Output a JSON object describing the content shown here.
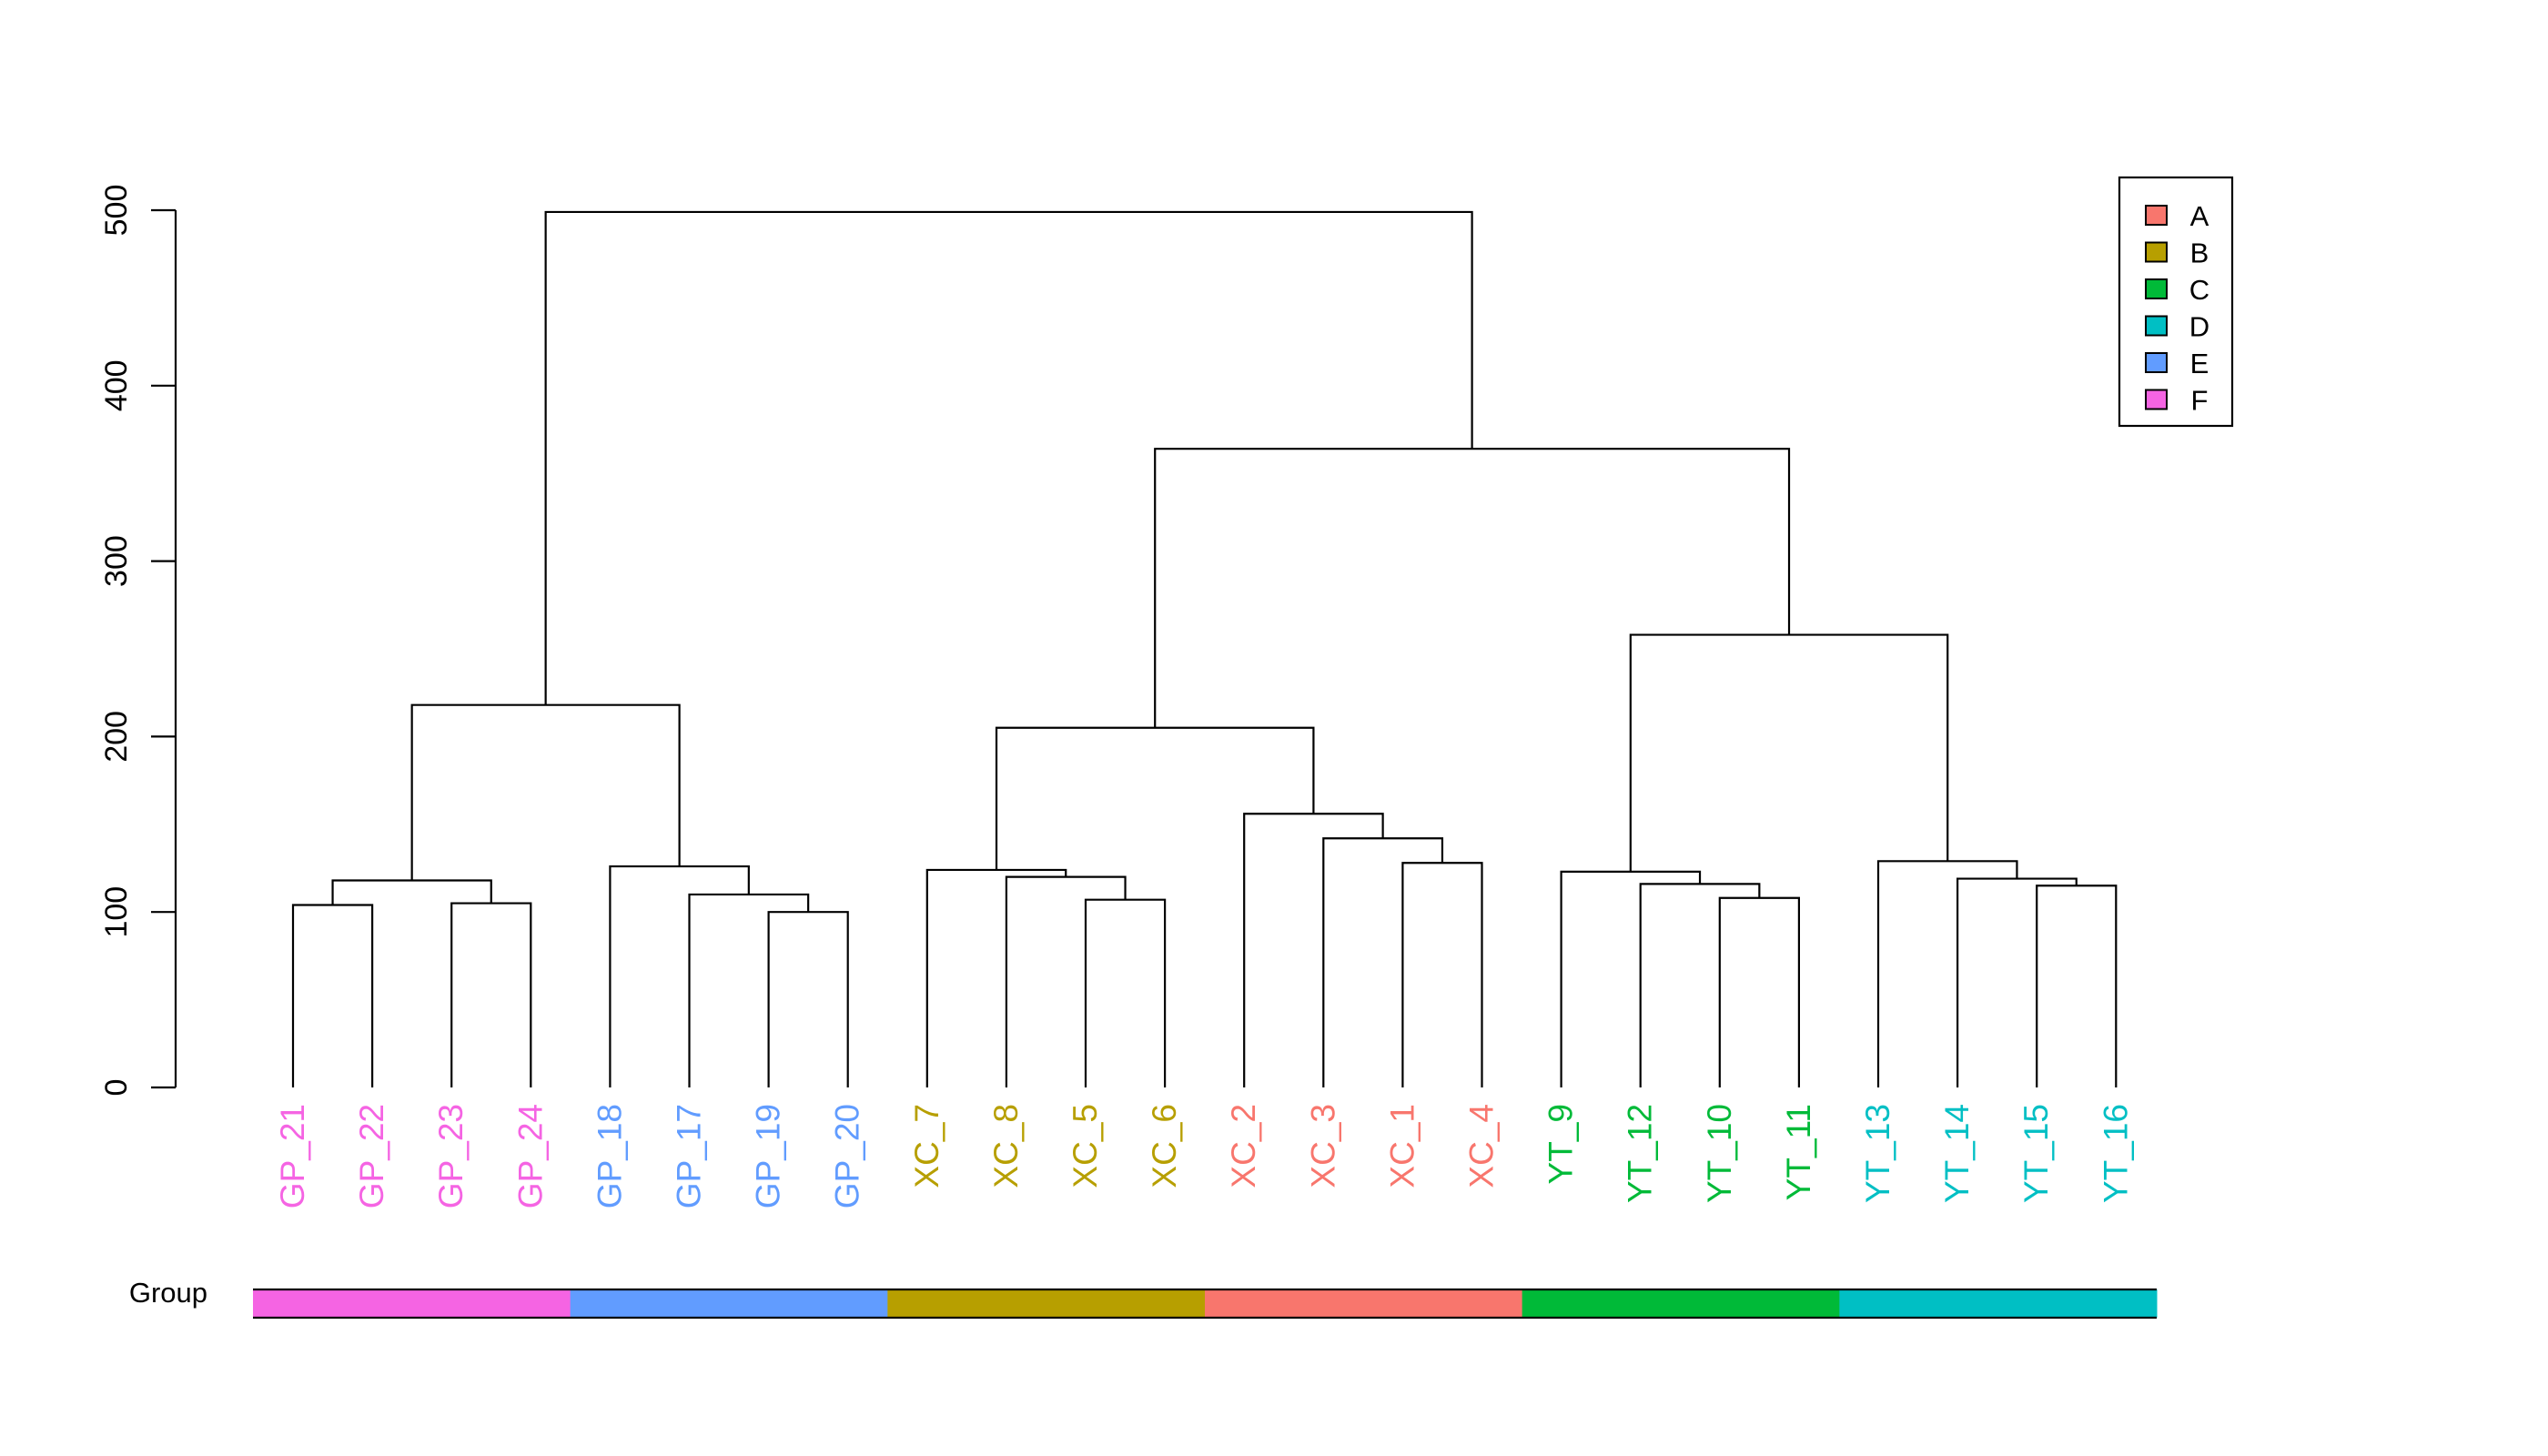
{
  "chart_data": {
    "type": "dendrogram",
    "ylim": [
      0,
      500
    ],
    "yticks": [
      0,
      100,
      200,
      300,
      400,
      500
    ],
    "leaves": [
      {
        "label": "GP_21",
        "group": "F"
      },
      {
        "label": "GP_22",
        "group": "F"
      },
      {
        "label": "GP_23",
        "group": "F"
      },
      {
        "label": "GP_24",
        "group": "F"
      },
      {
        "label": "GP_18",
        "group": "E"
      },
      {
        "label": "GP_17",
        "group": "E"
      },
      {
        "label": "GP_19",
        "group": "E"
      },
      {
        "label": "GP_20",
        "group": "E"
      },
      {
        "label": "XC_7",
        "group": "B"
      },
      {
        "label": "XC_8",
        "group": "B"
      },
      {
        "label": "XC_5",
        "group": "B"
      },
      {
        "label": "XC_6",
        "group": "B"
      },
      {
        "label": "XC_2",
        "group": "A"
      },
      {
        "label": "XC_3",
        "group": "A"
      },
      {
        "label": "XC_1",
        "group": "A"
      },
      {
        "label": "XC_4",
        "group": "A"
      },
      {
        "label": "YT_9",
        "group": "C"
      },
      {
        "label": "YT_12",
        "group": "C"
      },
      {
        "label": "YT_10",
        "group": "C"
      },
      {
        "label": "YT_11",
        "group": "C"
      },
      {
        "label": "YT_13",
        "group": "D"
      },
      {
        "label": "YT_14",
        "group": "D"
      },
      {
        "label": "YT_15",
        "group": "D"
      },
      {
        "label": "YT_16",
        "group": "D"
      }
    ],
    "merges": [
      [
        -1,
        -2,
        104
      ],
      [
        -3,
        -4,
        105
      ],
      [
        1,
        2,
        118
      ],
      [
        -7,
        -8,
        100
      ],
      [
        -6,
        4,
        110
      ],
      [
        -5,
        5,
        126
      ],
      [
        3,
        6,
        218
      ],
      [
        -11,
        -12,
        107
      ],
      [
        -10,
        8,
        120
      ],
      [
        -9,
        9,
        124
      ],
      [
        -15,
        -16,
        128
      ],
      [
        -14,
        11,
        142
      ],
      [
        -13,
        12,
        156
      ],
      [
        10,
        13,
        205
      ],
      [
        -19,
        -20,
        108
      ],
      [
        -18,
        15,
        116
      ],
      [
        -17,
        16,
        123
      ],
      [
        -23,
        -24,
        115
      ],
      [
        -22,
        18,
        119
      ],
      [
        -21,
        19,
        129
      ],
      [
        17,
        20,
        258
      ],
      [
        14,
        21,
        364
      ],
      [
        7,
        22,
        499
      ]
    ],
    "legend": {
      "entries": [
        "A",
        "B",
        "C",
        "D",
        "E",
        "F"
      ],
      "placement": "top-right"
    },
    "group_bar": {
      "label": "Group",
      "segments": [
        "F",
        "E",
        "B",
        "A",
        "C",
        "D"
      ]
    },
    "group_colors": {
      "A": "#F8766D",
      "B": "#B79F00",
      "C": "#00BA38",
      "D": "#00BFC4",
      "E": "#619CFF",
      "F": "#F564E3"
    }
  }
}
